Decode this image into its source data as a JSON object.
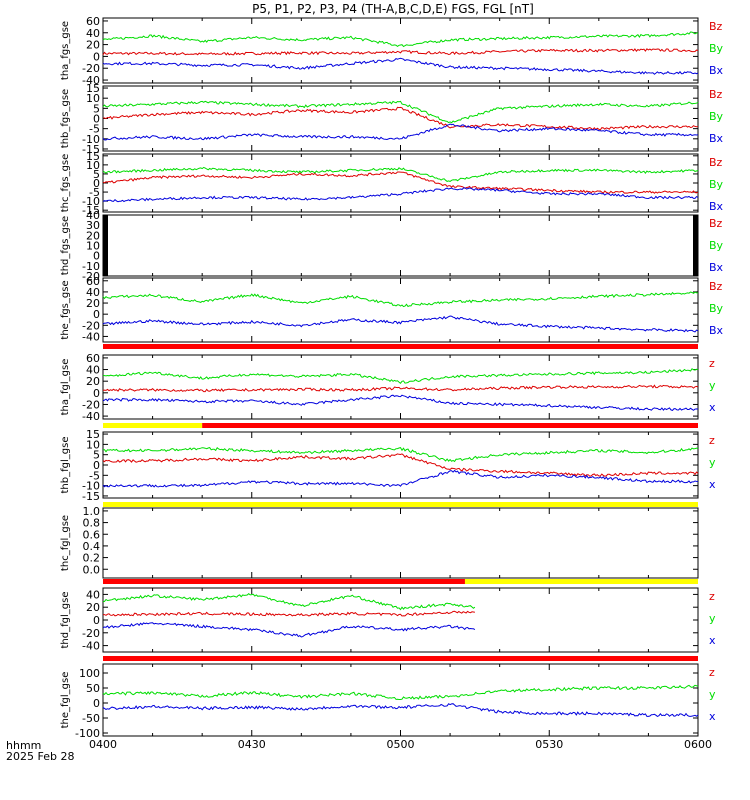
{
  "title": "P5, P1, P2, P3, P4 (TH-A,B,C,D,E) FGS, FGL [nT]",
  "footer": {
    "label1": "hhmm",
    "label2": "2025 Feb 28"
  },
  "colors": {
    "x": "#0000dd",
    "y": "#00dd00",
    "z": "#dd0000",
    "flag_red": "#ff0000",
    "flag_yellow": "#ffff00",
    "axis": "#000000"
  },
  "chart_data": [
    {
      "type": "line",
      "ylabel": "tha_fgs_gse",
      "ylim": [
        -45,
        65
      ],
      "yticks": [
        -40,
        -20,
        0,
        20,
        40,
        60
      ],
      "legend": [
        "Bz",
        "By",
        "Bx"
      ],
      "x": [
        "0400",
        "0410",
        "0420",
        "0430",
        "0440",
        "0450",
        "0500",
        "0510",
        "0520",
        "0530",
        "0540",
        "0550",
        "0600"
      ],
      "series": [
        {
          "name": "Bz",
          "component": "z",
          "values": [
            5,
            5,
            4,
            5,
            6,
            5,
            8,
            5,
            8,
            10,
            10,
            11,
            10
          ]
        },
        {
          "name": "By",
          "component": "y",
          "values": [
            28,
            35,
            25,
            32,
            28,
            32,
            18,
            28,
            30,
            32,
            34,
            35,
            40
          ]
        },
        {
          "name": "Bx",
          "component": "x",
          "values": [
            -12,
            -12,
            -15,
            -14,
            -20,
            -12,
            -5,
            -18,
            -20,
            -22,
            -25,
            -28,
            -28
          ]
        }
      ]
    },
    {
      "type": "line",
      "ylabel": "thb_fgs_gse",
      "ylim": [
        -16,
        16
      ],
      "yticks": [
        -15,
        -10,
        -5,
        0,
        5,
        10,
        15
      ],
      "legend": [
        "Bz",
        "By",
        "Bx"
      ],
      "x": [
        "0400",
        "0410",
        "0420",
        "0430",
        "0440",
        "0450",
        "0500",
        "0510",
        "0520",
        "0530",
        "0540",
        "0550",
        "0600"
      ],
      "series": [
        {
          "name": "Bz",
          "component": "z",
          "values": [
            0,
            2,
            3,
            2,
            4,
            3,
            5,
            -4,
            -3,
            -4,
            -5,
            -4,
            -4
          ]
        },
        {
          "name": "By",
          "component": "y",
          "values": [
            6,
            7,
            8,
            7,
            6,
            7,
            8,
            -2,
            5,
            6,
            7,
            6,
            8
          ]
        },
        {
          "name": "Bx",
          "component": "x",
          "values": [
            -10,
            -9,
            -10,
            -8,
            -9,
            -9,
            -10,
            -3,
            -6,
            -5,
            -6,
            -8,
            -8
          ]
        }
      ]
    },
    {
      "type": "line",
      "ylabel": "thc_fgs_gse",
      "ylim": [
        -16,
        16
      ],
      "yticks": [
        -15,
        -10,
        -5,
        0,
        5,
        10,
        15
      ],
      "legend": [
        "Bz",
        "By",
        "Bx"
      ],
      "x": [
        "0400",
        "0410",
        "0420",
        "0430",
        "0440",
        "0450",
        "0500",
        "0510",
        "0520",
        "0530",
        "0540",
        "0550",
        "0600"
      ],
      "series": [
        {
          "name": "Bz",
          "component": "z",
          "values": [
            0,
            3,
            4,
            3,
            5,
            4,
            6,
            -2,
            -3,
            -4,
            -5,
            -5,
            -5
          ]
        },
        {
          "name": "By",
          "component": "y",
          "values": [
            6,
            7,
            8,
            7,
            6,
            7,
            8,
            1,
            6,
            7,
            7,
            6,
            7
          ]
        },
        {
          "name": "Bx",
          "component": "x",
          "values": [
            -10,
            -9,
            -8,
            -8,
            -9,
            -8,
            -6,
            -3,
            -4,
            -6,
            -6,
            -8,
            -8
          ]
        }
      ]
    },
    {
      "type": "line",
      "ylabel": "thd_fgs_gse",
      "ylim": [
        -20,
        40
      ],
      "yticks": [
        -20,
        -10,
        0,
        10,
        20,
        30,
        40
      ],
      "legend": [
        "Bz",
        "By",
        "Bx"
      ],
      "x": [],
      "series": []
    },
    {
      "type": "line",
      "ylabel": "the_fgs_gse",
      "ylim": [
        -50,
        65
      ],
      "yticks": [
        -40,
        -20,
        0,
        20,
        40,
        60
      ],
      "legend": [
        "Bz",
        "By",
        "Bx"
      ],
      "x": [
        "0400",
        "0410",
        "0420",
        "0430",
        "0440",
        "0450",
        "0500",
        "0510",
        "0520",
        "0530",
        "0540",
        "0550",
        "0600"
      ],
      "series": [
        {
          "name": "By",
          "component": "y",
          "values": [
            30,
            34,
            22,
            35,
            20,
            32,
            15,
            22,
            25,
            28,
            32,
            35,
            38
          ]
        },
        {
          "name": "Bx",
          "component": "x",
          "values": [
            -18,
            -12,
            -18,
            -14,
            -20,
            -10,
            -15,
            -5,
            -18,
            -22,
            -25,
            -28,
            -30
          ]
        }
      ]
    },
    {
      "type": "line",
      "ylabel": "tha_fgl_gse",
      "ylim": [
        -45,
        65
      ],
      "yticks": [
        -40,
        -20,
        0,
        20,
        40,
        60
      ],
      "legend": [
        "z",
        "y",
        "x"
      ],
      "x": [
        "0400",
        "0410",
        "0420",
        "0430",
        "0440",
        "0450",
        "0500",
        "0510",
        "0520",
        "0530",
        "0540",
        "0550",
        "0600"
      ],
      "series": [
        {
          "name": "z",
          "component": "z",
          "values": [
            5,
            5,
            4,
            5,
            6,
            5,
            8,
            5,
            8,
            10,
            10,
            11,
            10
          ]
        },
        {
          "name": "y",
          "component": "y",
          "values": [
            28,
            35,
            25,
            32,
            28,
            32,
            18,
            28,
            30,
            32,
            34,
            35,
            40
          ]
        },
        {
          "name": "x",
          "component": "x",
          "values": [
            -12,
            -12,
            -15,
            -14,
            -20,
            -12,
            -5,
            -18,
            -20,
            -22,
            -25,
            -28,
            -28
          ]
        }
      ]
    },
    {
      "type": "line",
      "ylabel": "thb_fgl_gse",
      "ylim": [
        -16,
        16
      ],
      "yticks": [
        -15,
        -10,
        -5,
        0,
        5,
        10,
        15
      ],
      "legend": [
        "z",
        "y",
        "x"
      ],
      "x": [
        "0400",
        "0410",
        "0420",
        "0430",
        "0440",
        "0450",
        "0500",
        "0510",
        "0520",
        "0530",
        "0540",
        "0550",
        "0600"
      ],
      "series": [
        {
          "name": "z",
          "component": "z",
          "values": [
            2,
            2,
            3,
            2,
            4,
            3,
            5,
            -2,
            -3,
            -4,
            -5,
            -4,
            -4
          ]
        },
        {
          "name": "y",
          "component": "y",
          "values": [
            7,
            7,
            8,
            7,
            6,
            7,
            8,
            2,
            5,
            6,
            7,
            6,
            8
          ]
        },
        {
          "name": "x",
          "component": "x",
          "values": [
            -10,
            -10,
            -10,
            -8,
            -9,
            -9,
            -10,
            -3,
            -6,
            -5,
            -6,
            -8,
            -8
          ]
        }
      ]
    },
    {
      "type": "line",
      "ylabel": "thc_fgl_gse",
      "ylim": [
        -0.15,
        1.05
      ],
      "yticks": [
        0.0,
        0.2,
        0.4,
        0.6,
        0.8,
        1.0
      ],
      "legend": [],
      "x": [],
      "series": []
    },
    {
      "type": "line",
      "ylabel": "thd_fgl_gse",
      "ylim": [
        -50,
        50
      ],
      "yticks": [
        -40,
        -20,
        0,
        20,
        40
      ],
      "legend": [
        "z",
        "y",
        "x"
      ],
      "x": [
        "0400",
        "0410",
        "0420",
        "0430",
        "0440",
        "0450",
        "0500",
        "0510",
        "0515"
      ],
      "series": [
        {
          "name": "z",
          "component": "z",
          "values": [
            8,
            9,
            10,
            9,
            8,
            10,
            8,
            12,
            12
          ]
        },
        {
          "name": "y",
          "component": "y",
          "values": [
            30,
            38,
            32,
            40,
            22,
            38,
            18,
            25,
            20
          ]
        },
        {
          "name": "x",
          "component": "x",
          "values": [
            -12,
            -5,
            -10,
            -15,
            -25,
            -10,
            -15,
            -10,
            -15
          ]
        }
      ]
    },
    {
      "type": "line",
      "ylabel": "the_fgl_gse",
      "ylim": [
        -110,
        130
      ],
      "yticks": [
        -100,
        -50,
        0,
        50,
        100
      ],
      "legend": [
        "z",
        "y",
        "x"
      ],
      "x": [
        "0400",
        "0410",
        "0420",
        "0430",
        "0440",
        "0450",
        "0500",
        "0510",
        "0520",
        "0530",
        "0540",
        "0550",
        "0600"
      ],
      "series": [
        {
          "name": "y",
          "component": "y",
          "values": [
            30,
            34,
            22,
            35,
            20,
            32,
            15,
            22,
            40,
            45,
            50,
            50,
            55
          ]
        },
        {
          "name": "x",
          "component": "x",
          "values": [
            -18,
            -12,
            -18,
            -14,
            -20,
            -10,
            -15,
            -5,
            -30,
            -35,
            -35,
            -40,
            -40
          ]
        }
      ]
    }
  ],
  "flags": [
    {
      "segments": [
        [
          "0400",
          "0600",
          "red"
        ]
      ]
    },
    {
      "segments": [
        [
          "0400",
          "0420",
          "yellow"
        ],
        [
          "0420",
          "0600",
          "red"
        ]
      ]
    },
    {
      "segments": [
        [
          "0400",
          "0600",
          "yellow"
        ]
      ]
    },
    {
      "segments": [
        [
          "0400",
          "0513",
          "red"
        ],
        [
          "0513",
          "0600",
          "yellow"
        ]
      ]
    },
    {
      "segments": [
        [
          "0400",
          "0600",
          "red"
        ]
      ]
    }
  ],
  "xaxis": {
    "ticks": [
      "0400",
      "0430",
      "0500",
      "0530",
      "0600"
    ]
  }
}
